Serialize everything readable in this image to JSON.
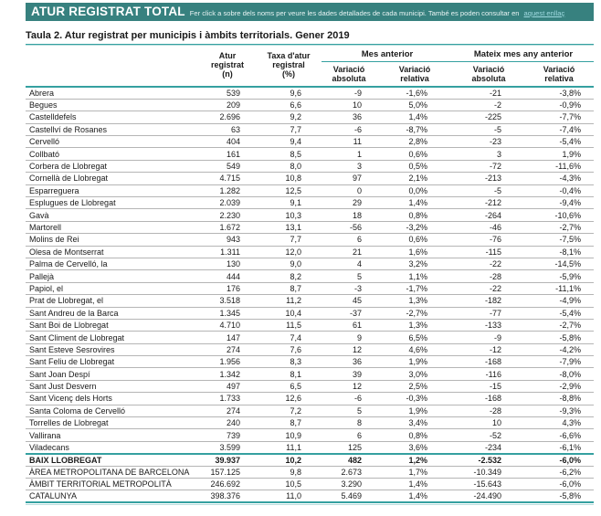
{
  "colors": {
    "banner_background": "#37817f",
    "rule_teal": "#35a0a0",
    "row_divider_gray": "#b5b5b5",
    "banner_link": "#9fd9e0"
  },
  "banner": {
    "title": "ATUR REGISTRAT TOTAL",
    "subtitle": "Fer click a sobre dels noms per veure les dades detallades de cada municipi. També es poden consultar en",
    "link_label": "aquest enllaç"
  },
  "table": {
    "title": "Taula 2. Atur registrat per municipis i àmbits territorials. Gener 2019",
    "columns": {
      "atur": "Atur\nregistrat\n(n)",
      "taxa": "Taxa d'atur\nregistral\n(%)",
      "var_abs": "Variació\nabsoluta",
      "var_rel": "Variació\nrelativa"
    },
    "groups": {
      "mes_anterior": "Mes anterior",
      "mateix_mes": "Mateix mes any anterior"
    },
    "rows": [
      {
        "name": "Abrera",
        "values": [
          "539",
          "9,6",
          "-9",
          "-1,6%",
          "-21",
          "-3,8%"
        ]
      },
      {
        "name": "Begues",
        "values": [
          "209",
          "6,6",
          "10",
          "5,0%",
          "-2",
          "-0,9%"
        ]
      },
      {
        "name": "Castelldefels",
        "values": [
          "2.696",
          "9,2",
          "36",
          "1,4%",
          "-225",
          "-7,7%"
        ]
      },
      {
        "name": "Castellví de Rosanes",
        "values": [
          "63",
          "7,7",
          "-6",
          "-8,7%",
          "-5",
          "-7,4%"
        ]
      },
      {
        "name": "Cervelló",
        "values": [
          "404",
          "9,4",
          "11",
          "2,8%",
          "-23",
          "-5,4%"
        ]
      },
      {
        "name": "Collbató",
        "values": [
          "161",
          "8,5",
          "1",
          "0,6%",
          "3",
          "1,9%"
        ]
      },
      {
        "name": "Corbera de Llobregat",
        "values": [
          "549",
          "8,0",
          "3",
          "0,5%",
          "-72",
          "-11,6%"
        ]
      },
      {
        "name": "Cornellà de Llobregat",
        "values": [
          "4.715",
          "10,8",
          "97",
          "2,1%",
          "-213",
          "-4,3%"
        ]
      },
      {
        "name": "Esparreguera",
        "values": [
          "1.282",
          "12,5",
          "0",
          "0,0%",
          "-5",
          "-0,4%"
        ]
      },
      {
        "name": "Esplugues de Llobregat",
        "values": [
          "2.039",
          "9,1",
          "29",
          "1,4%",
          "-212",
          "-9,4%"
        ]
      },
      {
        "name": "Gavà",
        "values": [
          "2.230",
          "10,3",
          "18",
          "0,8%",
          "-264",
          "-10,6%"
        ]
      },
      {
        "name": "Martorell",
        "values": [
          "1.672",
          "13,1",
          "-56",
          "-3,2%",
          "-46",
          "-2,7%"
        ]
      },
      {
        "name": "Molins de Rei",
        "values": [
          "943",
          "7,7",
          "6",
          "0,6%",
          "-76",
          "-7,5%"
        ]
      },
      {
        "name": "Olesa de Montserrat",
        "values": [
          "1.311",
          "12,0",
          "21",
          "1,6%",
          "-115",
          "-8,1%"
        ]
      },
      {
        "name": "Palma de Cervelló, la",
        "values": [
          "130",
          "9,0",
          "4",
          "3,2%",
          "-22",
          "-14,5%"
        ]
      },
      {
        "name": "Pallejà",
        "values": [
          "444",
          "8,2",
          "5",
          "1,1%",
          "-28",
          "-5,9%"
        ]
      },
      {
        "name": "Papiol, el",
        "values": [
          "176",
          "8,7",
          "-3",
          "-1,7%",
          "-22",
          "-11,1%"
        ]
      },
      {
        "name": "Prat de Llobregat, el",
        "values": [
          "3.518",
          "11,2",
          "45",
          "1,3%",
          "-182",
          "-4,9%"
        ]
      },
      {
        "name": "Sant Andreu de la Barca",
        "values": [
          "1.345",
          "10,4",
          "-37",
          "-2,7%",
          "-77",
          "-5,4%"
        ]
      },
      {
        "name": "Sant Boi de Llobregat",
        "values": [
          "4.710",
          "11,5",
          "61",
          "1,3%",
          "-133",
          "-2,7%"
        ]
      },
      {
        "name": "Sant Climent de Llobregat",
        "values": [
          "147",
          "7,4",
          "9",
          "6,5%",
          "-9",
          "-5,8%"
        ]
      },
      {
        "name": "Sant Esteve Sesrovires",
        "values": [
          "274",
          "7,6",
          "12",
          "4,6%",
          "-12",
          "-4,2%"
        ]
      },
      {
        "name": "Sant Feliu de Llobregat",
        "values": [
          "1.956",
          "8,3",
          "36",
          "1,9%",
          "-168",
          "-7,9%"
        ]
      },
      {
        "name": "Sant Joan Despí",
        "values": [
          "1.342",
          "8,1",
          "39",
          "3,0%",
          "-116",
          "-8,0%"
        ]
      },
      {
        "name": "Sant Just Desvern",
        "values": [
          "497",
          "6,5",
          "12",
          "2,5%",
          "-15",
          "-2,9%"
        ]
      },
      {
        "name": "Sant Vicenç dels Horts",
        "values": [
          "1.733",
          "12,6",
          "-6",
          "-0,3%",
          "-168",
          "-8,8%"
        ]
      },
      {
        "name": "Santa Coloma de Cervelló",
        "values": [
          "274",
          "7,2",
          "5",
          "1,9%",
          "-28",
          "-9,3%"
        ]
      },
      {
        "name": "Torrelles de Llobregat",
        "values": [
          "240",
          "8,7",
          "8",
          "3,4%",
          "10",
          "4,3%"
        ]
      },
      {
        "name": "Vallirana",
        "values": [
          "739",
          "10,9",
          "6",
          "0,8%",
          "-52",
          "-6,6%"
        ]
      },
      {
        "name": "Viladecans",
        "values": [
          "3.599",
          "11,1",
          "125",
          "3,6%",
          "-234",
          "-6,1%"
        ]
      }
    ],
    "summary_rows": [
      {
        "name": "BAIX LLOBREGAT",
        "bold": true,
        "values": [
          "39.937",
          "10,2",
          "482",
          "1,2%",
          "-2.532",
          "-6,0%"
        ]
      },
      {
        "name": "ÀREA METROPOLITANA DE BARCELONA",
        "bold": false,
        "values": [
          "157.125",
          "9,8",
          "2.673",
          "1,7%",
          "-10.349",
          "-6,2%"
        ]
      },
      {
        "name": "ÀMBIT TERRITORIAL METROPOLITÀ",
        "bold": false,
        "values": [
          "246.692",
          "10,5",
          "3.290",
          "1,4%",
          "-15.643",
          "-6,0%"
        ]
      },
      {
        "name": "CATALUNYA",
        "bold": false,
        "values": [
          "398.376",
          "11,0",
          "5.469",
          "1,4%",
          "-24.490",
          "-5,8%"
        ]
      }
    ]
  }
}
